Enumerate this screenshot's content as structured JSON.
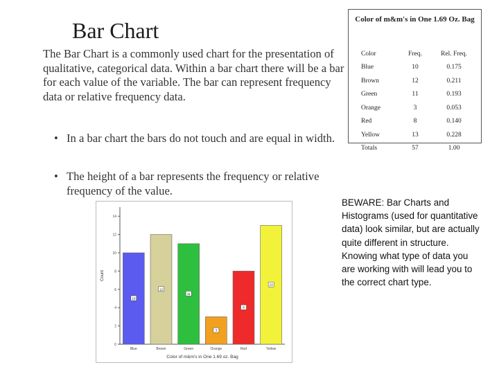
{
  "slide": {
    "title": "Bar Chart",
    "intro": "The Bar Chart is a commonly used chart for the presentation of qualitative, categorical data.  Within a bar chart there will be a bar for each value of the variable.  The bar can represent frequency data or relative frequency data.",
    "bullets": [
      "In a bar chart the bars do not touch and are equal in width.",
      "The height of a bar represents the frequency or relative frequency of the value."
    ],
    "bullet_glyph": "•",
    "beware": "BEWARE:  Bar Charts and Histograms (used for quantitative data) look similar, but are actually quite different in structure.  Knowing what type of data you are working with will lead you to the correct chart type."
  },
  "table": {
    "title": "Color of m&m's in One 1.69 Oz. Bag",
    "headers": [
      "Color",
      "Freq.",
      "Rel. Freq."
    ],
    "rows": [
      [
        "Blue",
        "10",
        "0.175"
      ],
      [
        "Brown",
        "12",
        "0.211"
      ],
      [
        "Green",
        "11",
        "0.193"
      ],
      [
        "Orange",
        "3",
        "0.053"
      ],
      [
        "Red",
        "8",
        "0.140"
      ],
      [
        "Yellow",
        "13",
        "0.228"
      ],
      [
        "Totals",
        "57",
        "1.00"
      ]
    ]
  },
  "chart_data": {
    "type": "bar",
    "categories": [
      "Blue",
      "Brown",
      "Green",
      "Orange",
      "Red",
      "Yellow"
    ],
    "values": [
      10,
      12,
      11,
      3,
      8,
      13
    ],
    "bar_labels": [
      "10",
      "12",
      "11",
      "3",
      "8",
      "13"
    ],
    "colors": [
      "#5b5bf0",
      "#d6d09a",
      "#2fbf3f",
      "#f2a020",
      "#ee2a2a",
      "#f2f23a"
    ],
    "xlabel": "Color of m&m's in One 1.69 oz. Bag",
    "ylabel": "Count",
    "ylim": [
      0,
      15
    ],
    "yticks": [
      "0",
      "2",
      "4",
      "6",
      "8",
      "10",
      "12",
      "14"
    ]
  }
}
